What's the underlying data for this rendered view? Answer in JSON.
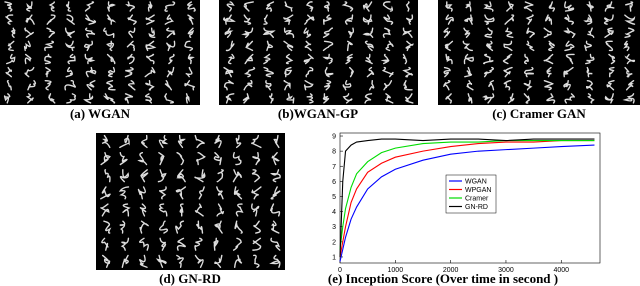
{
  "panels": [
    {
      "caption": "(a) WGAN"
    },
    {
      "caption": "(b)WGAN-GP"
    },
    {
      "caption": "(c) Cramer GAN"
    },
    {
      "caption": "(d) GN-RD"
    }
  ],
  "chart_data": {
    "type": "line",
    "title": "(e) Inception Score (Over time in second )",
    "x": [
      0,
      50,
      100,
      200,
      300,
      500,
      750,
      1000,
      1500,
      2000,
      2500,
      3000,
      3500,
      4000,
      4600
    ],
    "series": [
      {
        "name": "WGAN",
        "color": "#0000ff",
        "values": [
          0.7,
          1.5,
          2.3,
          3.5,
          4.3,
          5.5,
          6.3,
          6.8,
          7.4,
          7.8,
          8.0,
          8.1,
          8.2,
          8.3,
          8.4
        ]
      },
      {
        "name": "WPGAN",
        "color": "#ff0000",
        "values": [
          1.0,
          2.0,
          3.0,
          4.6,
          5.5,
          6.6,
          7.2,
          7.6,
          8.0,
          8.3,
          8.5,
          8.6,
          8.6,
          8.7,
          8.7
        ]
      },
      {
        "name": "Cramer",
        "color": "#00dd00",
        "values": [
          1.5,
          3.0,
          4.2,
          5.6,
          6.5,
          7.3,
          7.9,
          8.2,
          8.5,
          8.6,
          8.6,
          8.7,
          8.7,
          8.7,
          8.7
        ]
      },
      {
        "name": "GN-RD",
        "color": "#000000",
        "values": [
          1.0,
          6.0,
          8.0,
          8.4,
          8.6,
          8.7,
          8.8,
          8.8,
          8.7,
          8.8,
          8.8,
          8.7,
          8.8,
          8.8,
          8.8
        ]
      }
    ],
    "xlim": [
      0,
      4700
    ],
    "xticks": [
      0,
      1000,
      2000,
      3000,
      4000
    ],
    "ylim": [
      0.6,
      9.2
    ],
    "yticks": [
      1,
      2,
      3,
      4,
      5,
      6,
      7,
      8,
      9
    ]
  }
}
